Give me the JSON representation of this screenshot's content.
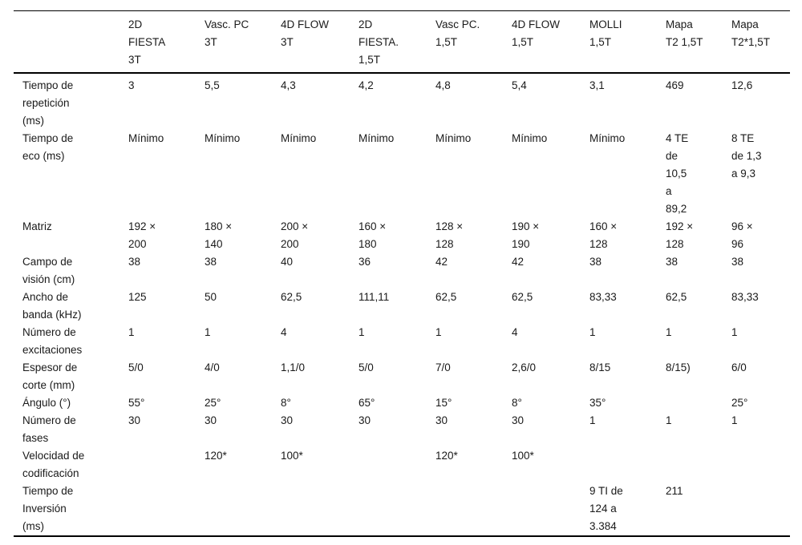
{
  "table": {
    "columns": [
      "",
      "2D\nFIESTA\n3T",
      "Vasc. PC\n3T",
      "4D FLOW\n3T",
      "2D\nFIESTA.\n1,5T",
      "Vasc PC.\n1,5T",
      "4D FLOW\n1,5T",
      "MOLLI\n1,5T",
      "Mapa\nT2 1,5T",
      "Mapa\nT2*1,5T"
    ],
    "rows": [
      {
        "label": "Tiempo de\nrepetición\n(ms)",
        "values": [
          "3",
          "5,5",
          "4,3",
          "4,2",
          "4,8",
          "5,4",
          "3,1",
          "469",
          "12,6"
        ]
      },
      {
        "label": "Tiempo de\neco (ms)",
        "values": [
          "Mínimo",
          "Mínimo",
          "Mínimo",
          "Mínimo",
          "Mínimo",
          "Mínimo",
          "Mínimo",
          "4 TE\nde\n10,5\na\n89,2",
          "8 TE\nde 1,3\na 9,3"
        ]
      },
      {
        "label": "Matriz",
        "values": [
          "192 ×\n200",
          "180 ×\n140",
          "200 ×\n200",
          "160 ×\n180",
          "128 ×\n128",
          "190 ×\n190",
          "160 ×\n128",
          "192 ×\n128",
          "96 ×\n96"
        ]
      },
      {
        "label": "Campo de\nvisión (cm)",
        "values": [
          "38",
          "38",
          "40",
          "36",
          "42",
          "42",
          "38",
          "38",
          "38"
        ]
      },
      {
        "label": "Ancho de\nbanda (kHz)",
        "values": [
          "125",
          "50",
          "62,5",
          "111,11",
          "62,5",
          "62,5",
          "83,33",
          "62,5",
          "83,33"
        ]
      },
      {
        "label": "Número de\nexcitaciones",
        "values": [
          "1",
          "1",
          "4",
          "1",
          "1",
          "4",
          "1",
          "1",
          "1"
        ]
      },
      {
        "label": "Espesor de\ncorte (mm)",
        "values": [
          "5/0",
          "4/0",
          "1,1/0",
          "5/0",
          "7/0",
          "2,6/0",
          "8/15",
          "8/15)",
          "6/0"
        ]
      },
      {
        "label": "Ángulo (°)",
        "values": [
          "55°",
          "25°",
          "8°",
          "65°",
          "15°",
          "8°",
          "35°",
          "",
          "25°"
        ]
      },
      {
        "label": "Número de\nfases",
        "values": [
          "30",
          "30",
          "30",
          "30",
          "30",
          "30",
          "1",
          "1",
          "1"
        ]
      },
      {
        "label": "Velocidad de\ncodificación",
        "values": [
          "",
          "120*",
          "100*",
          "",
          "120*",
          "100*",
          "",
          "",
          ""
        ]
      },
      {
        "label": "Tiempo de\nInversión\n(ms)",
        "values": [
          "",
          "",
          "",
          "",
          "",
          "",
          "9 TI de\n124 a\n3.384",
          "211",
          ""
        ]
      }
    ]
  },
  "layout_note": ""
}
